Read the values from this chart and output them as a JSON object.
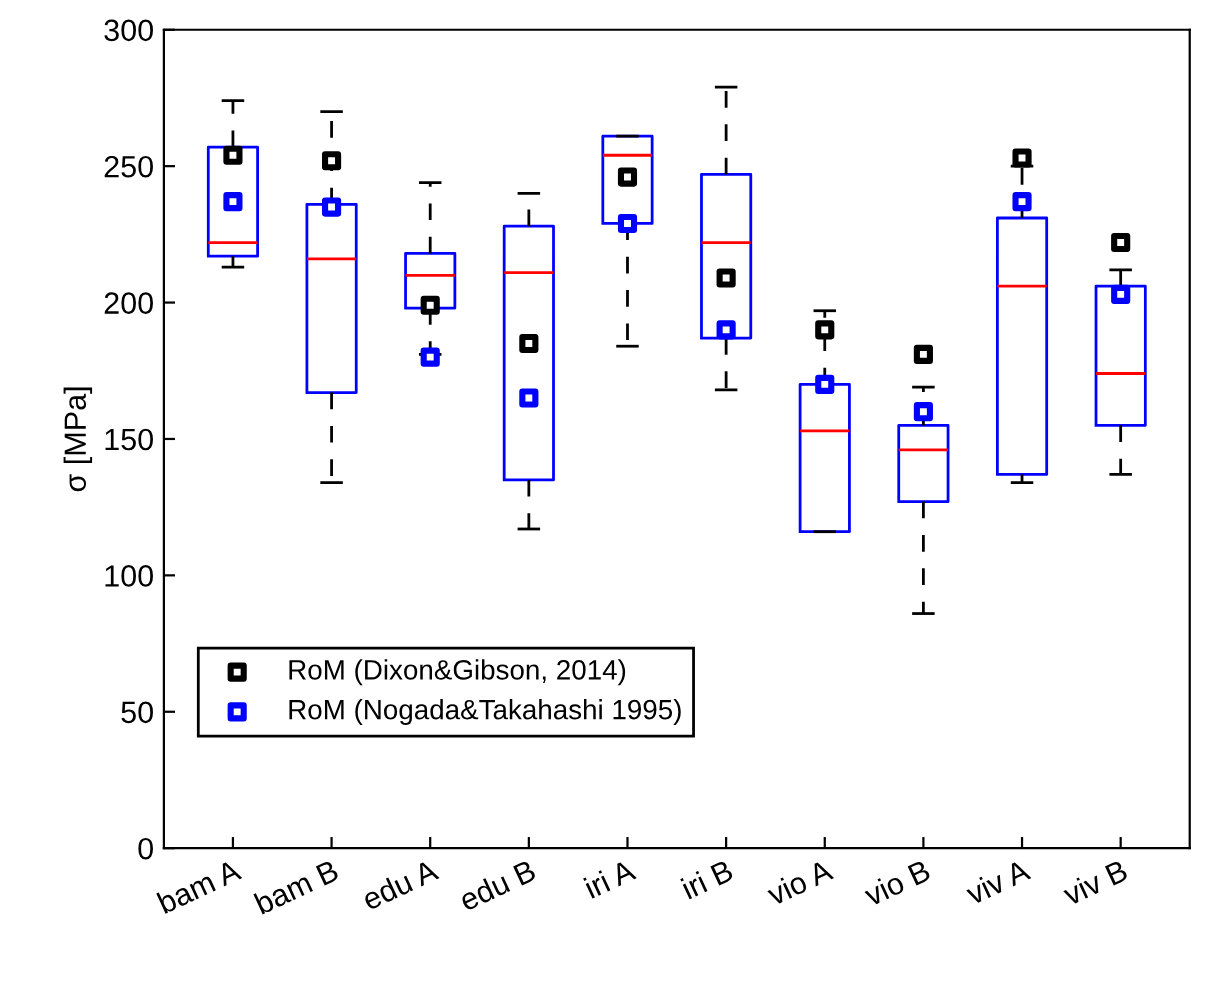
{
  "chart_data": {
    "type": "box",
    "ylabel": "σ [MPa]",
    "categories": [
      "bam A",
      "bam B",
      "edu A",
      "edu B",
      "iri A",
      "iri B",
      "vio A",
      "vio B",
      "viv A",
      "viv B"
    ],
    "boxes": [
      {
        "low": 213,
        "q1": 217,
        "median": 222,
        "q3": 257,
        "high": 274
      },
      {
        "low": 134,
        "q1": 167,
        "median": 216,
        "q3": 236,
        "high": 270
      },
      {
        "low": 181,
        "q1": 198,
        "median": 210,
        "q3": 218,
        "high": 244
      },
      {
        "low": 117,
        "q1": 135,
        "median": 211,
        "q3": 228,
        "high": 240
      },
      {
        "low": 184,
        "q1": 229,
        "median": 254,
        "q3": 261,
        "high": 261
      },
      {
        "low": 168,
        "q1": 187,
        "median": 222,
        "q3": 247,
        "high": 279
      },
      {
        "low": 116,
        "q1": 116,
        "median": 153,
        "q3": 170,
        "high": 197
      },
      {
        "low": 86,
        "q1": 127,
        "median": 146,
        "q3": 155,
        "high": 169
      },
      {
        "low": 134,
        "q1": 137,
        "median": 206,
        "q3": 231,
        "high": 250
      },
      {
        "low": 137,
        "q1": 155,
        "median": 174,
        "q3": 206,
        "high": 212
      }
    ],
    "color": "#0000ff",
    "series": [
      {
        "type": "scatter",
        "name": "RoM (Dixon&Gibson, 2014)",
        "color": "#000000",
        "x": [
          "bam A",
          "bam B",
          "edu A",
          "edu B",
          "iri A",
          "iri B",
          "vio A",
          "vio B",
          "viv A",
          "viv B"
        ],
        "values": [
          254,
          252,
          199,
          185,
          246,
          209,
          190,
          181,
          253,
          222
        ]
      },
      {
        "type": "scatter",
        "name": "RoM (Nogada&Takahashi 1995)",
        "color": "#0000ff",
        "x": [
          "bam A",
          "bam B",
          "edu A",
          "edu B",
          "iri A",
          "iri B",
          "vio A",
          "vio B",
          "viv A",
          "viv B"
        ],
        "values": [
          237,
          235,
          180,
          165,
          229,
          190,
          170,
          160,
          237,
          203
        ]
      }
    ],
    "marker": "square",
    "ylim": [
      0,
      300
    ],
    "yticks": [
      0,
      50,
      100,
      150,
      200,
      250,
      300
    ],
    "legend": "bottom left",
    "grid": false
  }
}
